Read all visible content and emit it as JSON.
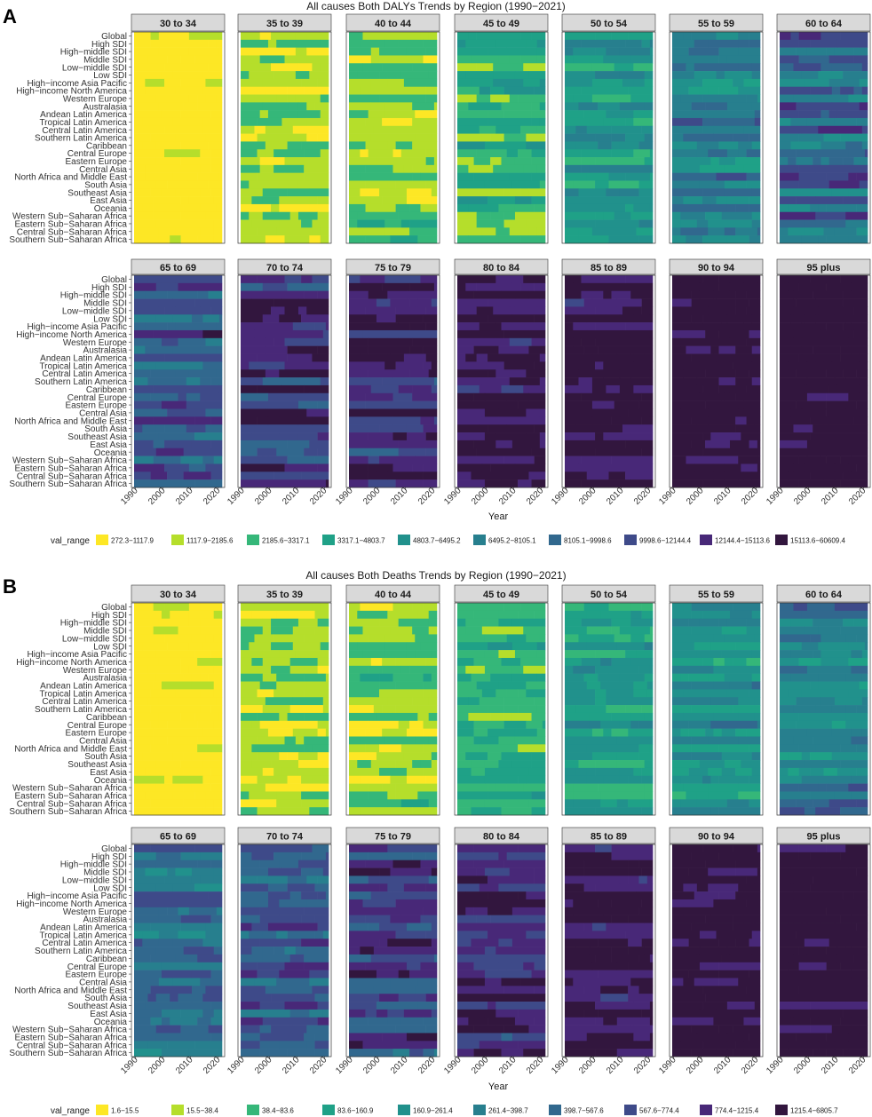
{
  "palette": [
    "#fde725",
    "#b5de2b",
    "#35b779",
    "#1fa187",
    "#21918c",
    "#277f8e",
    "#31688e",
    "#3e4a89",
    "#482878",
    "#32163e"
  ],
  "facet_strip_fill": "#d9d9d9",
  "chart_data": [
    {
      "panel_label": "A",
      "type": "heatmap",
      "title": "All causes Both DALYs Trends by Region (1990−2021)",
      "xlabel": "Year",
      "legend_title": "val_range",
      "legend_position": "bottom",
      "x_range": [
        1990,
        2021
      ],
      "x_ticks": [
        1990,
        2000,
        2010,
        2020
      ],
      "legend_levels": [
        "272.3−1117.9",
        "1117.9−2185.6",
        "2185.6−3317.1",
        "3317.1−4803.7",
        "4803.7−6495.2",
        "6495.2−8105.1",
        "8105.1−9998.6",
        "9998.6−12144.4",
        "12144.4−15113.6",
        "15113.6−60609.4"
      ],
      "facets": [
        "30 to 34",
        "35 to 39",
        "40 to 44",
        "45 to 49",
        "50 to 54",
        "55 to 59",
        "60 to 64",
        "65 to 69",
        "70 to 74",
        "75 to 79",
        "80 to 84",
        "85 to 89",
        "90 to 94",
        "95 plus"
      ],
      "base_class_by_facet": [
        [
          0,
          0.4
        ],
        [
          1,
          0.6
        ],
        [
          1.4,
          0.9
        ],
        [
          2.4,
          1.2
        ],
        [
          3.4,
          1.4
        ],
        [
          4.6,
          1.6
        ],
        [
          5.9,
          1.8
        ],
        [
          6.8,
          1.7
        ],
        [
          7.6,
          1.5
        ],
        [
          8.1,
          1.3
        ],
        [
          8.5,
          1.0
        ],
        [
          8.8,
          0.8
        ],
        [
          9.1,
          0.6
        ],
        [
          9.3,
          0.5
        ]
      ],
      "regions": [
        "Global",
        "High SDI",
        "High−middle SDI",
        "Middle SDI",
        "Low−middle SDI",
        "Low SDI",
        "High−income Asia Pacific",
        "High−income North America",
        "Western Europe",
        "Australasia",
        "Andean Latin America",
        "Tropical Latin America",
        "Central Latin America",
        "Southern Latin America",
        "Caribbean",
        "Central Europe",
        "Eastern Europe",
        "Central Asia",
        "North Africa and Middle East",
        "South Asia",
        "Southeast Asia",
        "East Asia",
        "Oceania",
        "Western Sub−Saharan Africa",
        "Eastern Sub−Saharan Africa",
        "Central Sub−Saharan Africa",
        "Southern Sub−Saharan Africa"
      ]
    },
    {
      "panel_label": "B",
      "type": "heatmap",
      "title": "All causes Both Deaths Trends by Region (1990−2021)",
      "xlabel": "Year",
      "legend_title": "val_range",
      "legend_position": "bottom",
      "x_range": [
        1990,
        2021
      ],
      "x_ticks": [
        1990,
        2000,
        2010,
        2020
      ],
      "legend_levels": [
        "1.6−15.5",
        "15.5−38.4",
        "38.4−83.6",
        "83.6−160.9",
        "160.9−261.4",
        "261.4−398.7",
        "398.7−567.6",
        "567.6−774.4",
        "774.4−1215.4",
        "1215.4−6805.7"
      ],
      "facets": [
        "30 to 34",
        "35 to 39",
        "40 to 44",
        "45 to 49",
        "50 to 54",
        "55 to 59",
        "60 to 64",
        "65 to 69",
        "70 to 74",
        "75 to 79",
        "80 to 84",
        "85 to 89",
        "90 to 94",
        "95 plus"
      ],
      "base_class_by_facet": [
        [
          0,
          0.4
        ],
        [
          1,
          0.6
        ],
        [
          1.4,
          0.9
        ],
        [
          2.3,
          1.1
        ],
        [
          3.2,
          1.2
        ],
        [
          4.0,
          1.3
        ],
        [
          5.0,
          1.4
        ],
        [
          5.8,
          1.5
        ],
        [
          6.6,
          1.6
        ],
        [
          7.3,
          1.5
        ],
        [
          8.0,
          1.3
        ],
        [
          8.6,
          1.0
        ],
        [
          9.0,
          0.8
        ],
        [
          9.2,
          0.6
        ]
      ],
      "regions": [
        "Global",
        "High SDI",
        "High−middle SDI",
        "Middle SDI",
        "Low−middle SDI",
        "Low SDI",
        "High−income Asia Pacific",
        "High−income North America",
        "Western Europe",
        "Australasia",
        "Andean Latin America",
        "Tropical Latin America",
        "Central Latin America",
        "Southern Latin America",
        "Caribbean",
        "Central Europe",
        "Eastern Europe",
        "Central Asia",
        "North Africa and Middle East",
        "South Asia",
        "Southeast Asia",
        "East Asia",
        "Oceania",
        "Western Sub−Saharan Africa",
        "Eastern Sub−Saharan Africa",
        "Central Sub−Saharan Africa",
        "Southern Sub−Saharan Africa"
      ]
    }
  ]
}
